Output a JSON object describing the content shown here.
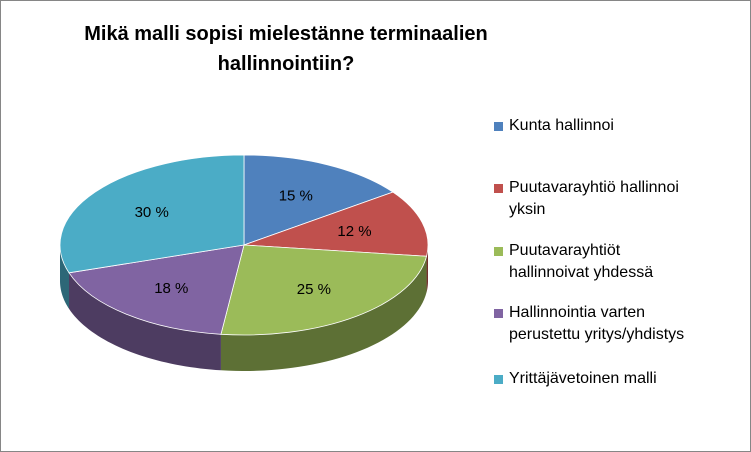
{
  "chart_data": {
    "type": "pie",
    "style": "3d",
    "title_lines": [
      "Mikä malli sopisi mielestänne terminaalien",
      "hallinnointiin?"
    ],
    "categories": [
      "Kunta hallinnoi",
      "Puutavarayhtiö hallinnoi yksin",
      "Puutavarayhtiöt hallinnoivat yhdessä",
      "Hallinnointia varten perustettu yritys/yhdistys",
      "Yrittäjävetoinen malli"
    ],
    "values": [
      15,
      12,
      25,
      18,
      30
    ],
    "data_labels": [
      "15 %",
      "12 %",
      "25 %",
      "18 %",
      "30 %"
    ],
    "colors": [
      "#4F81BD",
      "#C0504D",
      "#9BBB59",
      "#8064A2",
      "#4BACC6"
    ],
    "legend_position": "right",
    "legend_lines": [
      [
        "Kunta hallinnoi"
      ],
      [
        "Puutavarayhtiö hallinnoi",
        "yksin"
      ],
      [
        "Puutavarayhtiöt",
        "hallinnoivat yhdessä"
      ],
      [
        "Hallinnointia varten",
        "perustettu yritys/yhdistys"
      ],
      [
        "Yrittäjävetoinen malli"
      ]
    ]
  }
}
